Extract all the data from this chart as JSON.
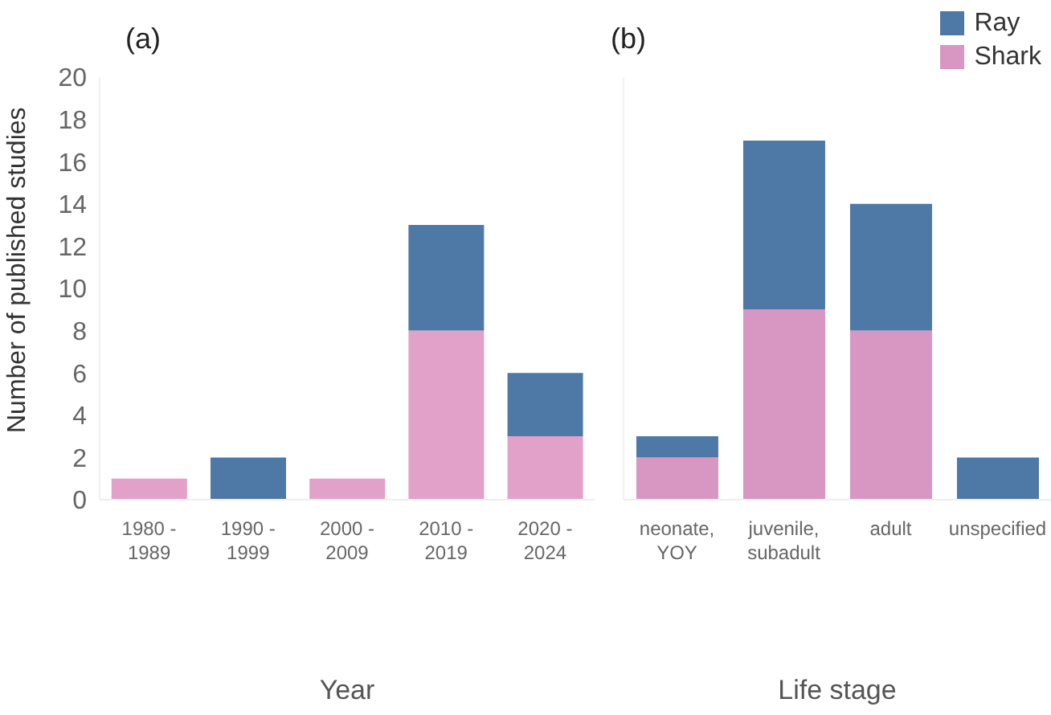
{
  "chart_data": [
    {
      "type": "bar",
      "title": "(a)",
      "xlabel": "Year",
      "ylabel": "Number of published studies",
      "categories": [
        "1980 -\n1989",
        "1990 -\n1999",
        "2000 -\n2009",
        "2010 -\n2019",
        "2020 -\n2024"
      ],
      "stacked": true,
      "series": [
        {
          "color": "#e2a1c8",
          "values": [
            1,
            0,
            1,
            8,
            3
          ]
        },
        {
          "color": "#4e79a7",
          "values": [
            0,
            2,
            0,
            5,
            3
          ]
        }
      ],
      "ylim": [
        0,
        20
      ],
      "yticks": [
        0,
        2,
        4,
        6,
        8,
        10,
        12,
        14,
        16,
        18,
        20
      ],
      "grid": false,
      "legend": false
    },
    {
      "type": "bar",
      "title": "(b)",
      "xlabel": "Life stage",
      "categories": [
        "neonate,\nYOY",
        "juvenile,\nsubadult",
        "adult",
        "unspecified"
      ],
      "stacked": true,
      "series": [
        {
          "name": "Shark",
          "color": "#d896c2",
          "values": [
            2,
            9,
            8,
            0
          ]
        },
        {
          "name": "Ray",
          "color": "#4e79a7",
          "values": [
            1,
            8,
            6,
            2
          ]
        }
      ],
      "ylim": [
        0,
        20
      ],
      "yticks": [
        0,
        2,
        4,
        6,
        8,
        10,
        12,
        14,
        16,
        18,
        20
      ],
      "grid": false,
      "legend": "top right",
      "tick_labels": "x"
    }
  ]
}
